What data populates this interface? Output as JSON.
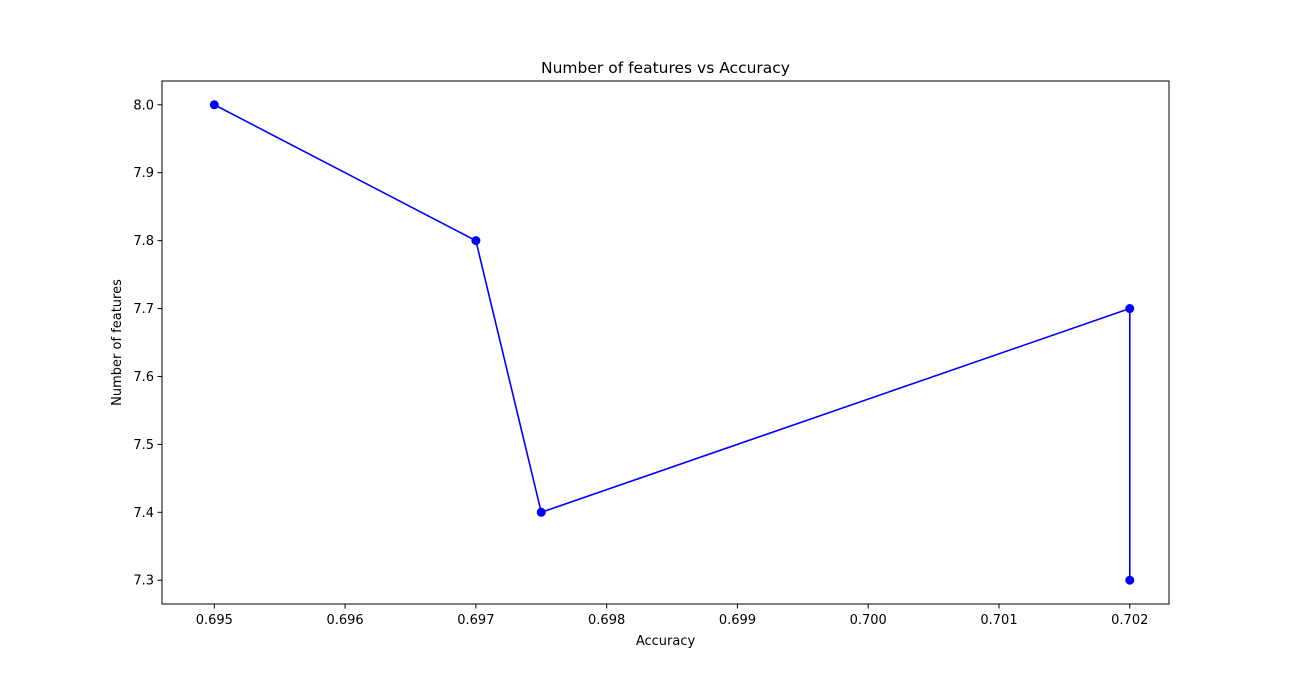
{
  "chart_data": {
    "type": "line",
    "title": "Number of features vs Accuracy",
    "xlabel": "Accuracy",
    "ylabel": "Number of features",
    "xlim": [
      0.6946,
      0.7023
    ],
    "ylim": [
      7.265,
      8.035
    ],
    "xticks": [
      0.695,
      0.696,
      0.697,
      0.698,
      0.699,
      0.7,
      0.701,
      0.702
    ],
    "xtick_labels": [
      "0.695",
      "0.696",
      "0.697",
      "0.698",
      "0.699",
      "0.700",
      "0.701",
      "0.702"
    ],
    "yticks": [
      7.3,
      7.4,
      7.5,
      7.6,
      7.7,
      7.8,
      7.9,
      8.0
    ],
    "ytick_labels": [
      "7.3",
      "7.4",
      "7.5",
      "7.6",
      "7.7",
      "7.8",
      "7.9",
      "8.0"
    ],
    "grid": false,
    "series": [
      {
        "color": "#0000ff",
        "marker": "circle",
        "x": [
          0.695,
          0.697,
          0.6975,
          0.702,
          0.702
        ],
        "y": [
          8.0,
          7.8,
          7.4,
          7.7,
          7.3
        ]
      }
    ]
  }
}
